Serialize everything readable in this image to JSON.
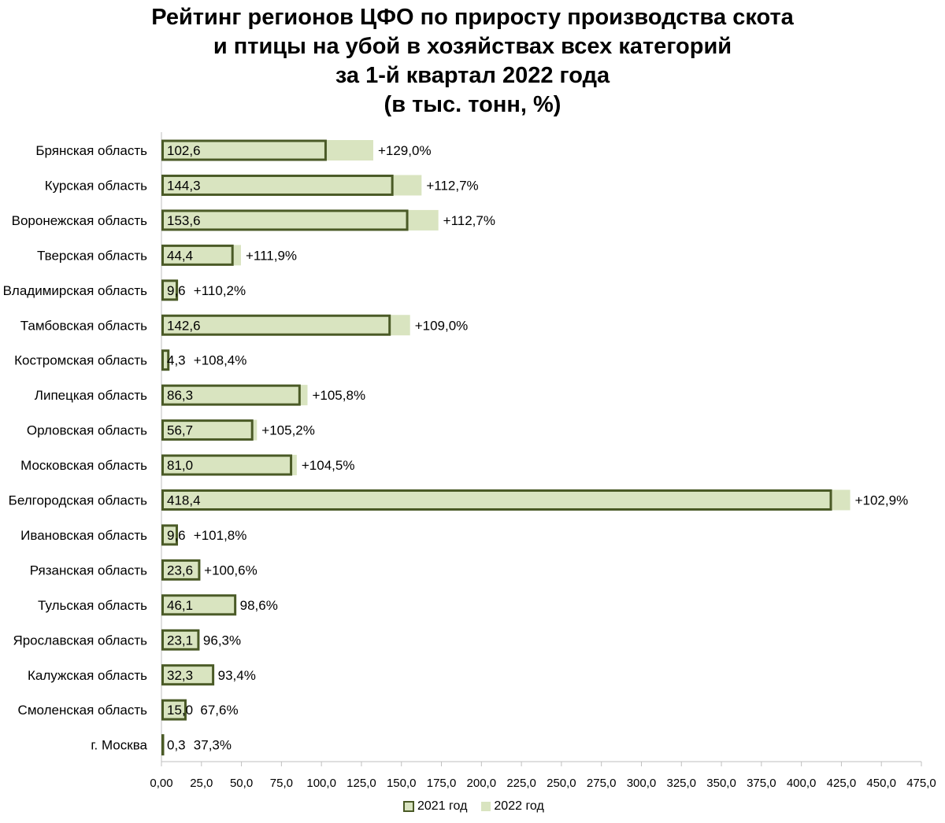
{
  "title_lines": [
    "Рейтинг регионов ЦФО по приросту производства скота",
    "и птицы на убой в хозяйствах всех категорий",
    "за 1-й квартал 2022 года",
    "(в тыс. тонн, %)"
  ],
  "colors": {
    "bar_2021_border": "#4a5a26",
    "bar_fill": "#d9e4c0",
    "axis": "#bfbfbf",
    "grid": "#d9d9d9"
  },
  "chart_data": {
    "type": "bar",
    "orientation": "horizontal",
    "categories": [
      "Брянская область",
      "Курская область",
      "Воронежская область",
      "Тверская область",
      "Владимирская область",
      "Тамбовская область",
      "Костромская область",
      "Липецкая область",
      "Орловская область",
      "Московская область",
      "Белгородская область",
      "Ивановская область",
      "Рязанская область",
      "Тульская область",
      "Ярославская область",
      "Калужская область",
      "Смоленская область",
      "г. Москва"
    ],
    "series": [
      {
        "name": "2021 год",
        "values": [
          102.6,
          144.3,
          153.6,
          44.4,
          9.6,
          142.6,
          4.3,
          86.3,
          56.7,
          81.0,
          418.4,
          9.6,
          23.6,
          46.1,
          23.1,
          32.3,
          15.0,
          0.3
        ],
        "labels": [
          "102,6",
          "144,3",
          "153,6",
          "44,4",
          "9,6",
          "142,6",
          "4,3",
          "86,3",
          "56,7",
          "81,0",
          "418,4",
          "9,6",
          "23,6",
          "46,1",
          "23,1",
          "32,3",
          "15,0",
          "0,3"
        ]
      },
      {
        "name": "2022 год",
        "values": [
          132.4,
          162.6,
          173.1,
          49.7,
          10.6,
          155.4,
          4.7,
          91.3,
          59.7,
          84.6,
          430.5,
          9.8,
          23.7,
          45.5,
          22.2,
          30.2,
          10.1,
          0.1
        ],
        "labels": [
          "+129,0%",
          "+112,7%",
          "+112,7%",
          "+111,9%",
          "+110,2%",
          "+109,0%",
          "+108,4%",
          "+105,8%",
          "+105,2%",
          "+104,5%",
          "+102,9%",
          "+101,8%",
          "+100,6%",
          "98,6%",
          "96,3%",
          "93,4%",
          "67,6%",
          "37,3%"
        ]
      }
    ],
    "xlim": [
      0,
      475
    ],
    "x_ticks": [
      "0,00",
      "25,0",
      "50,0",
      "75,0",
      "100,0",
      "125,0",
      "150,0",
      "175,0",
      "200,0",
      "225,0",
      "250,0",
      "275,0",
      "300,0",
      "325,0",
      "350,0",
      "375,0",
      "400,0",
      "425,0",
      "450,0",
      "475,0"
    ],
    "x_tick_values": [
      0,
      25,
      50,
      75,
      100,
      125,
      150,
      175,
      200,
      225,
      250,
      275,
      300,
      325,
      350,
      375,
      400,
      425,
      450,
      475
    ],
    "legend_position": "bottom",
    "grid": false
  }
}
